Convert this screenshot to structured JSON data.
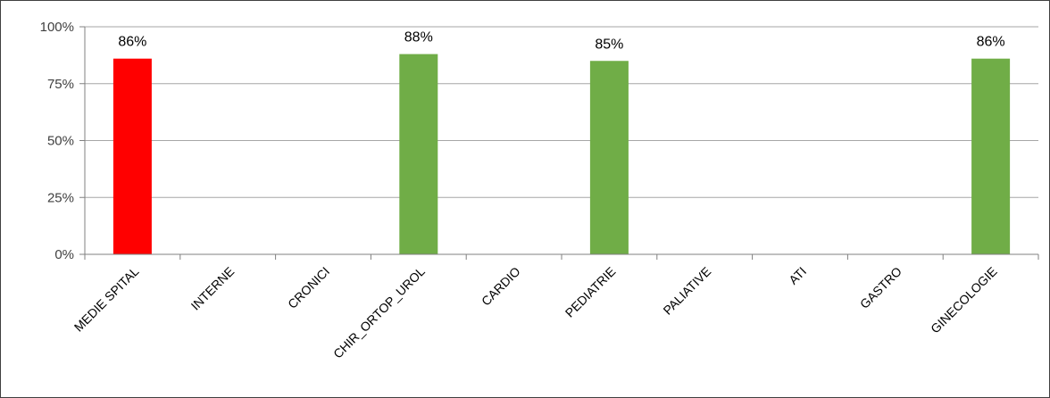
{
  "chart_data": {
    "type": "bar",
    "categories": [
      "MEDIE SPITAL",
      "INTERNE",
      "CRONICI",
      "CHIR_ORTOP_UROL",
      "CARDIO",
      "PEDIATRIE",
      "PALIATIVE",
      "ATI",
      "GASTRO",
      "GINECOLOGIE"
    ],
    "values": [
      86,
      null,
      null,
      88,
      null,
      85,
      null,
      null,
      null,
      86
    ],
    "data_labels": [
      "86%",
      "",
      "",
      "88%",
      "",
      "85%",
      "",
      "",
      "",
      "86%"
    ],
    "bar_colors": [
      "#ff0000",
      "#70ad47",
      "#70ad47",
      "#70ad47",
      "#70ad47",
      "#70ad47",
      "#70ad47",
      "#70ad47",
      "#70ad47",
      "#70ad47"
    ],
    "ylim": [
      0,
      100
    ],
    "y_ticks": [
      0,
      25,
      50,
      75,
      100
    ],
    "y_tick_labels": [
      "0%",
      "25%",
      "50%",
      "75%",
      "100%"
    ],
    "title": "",
    "xlabel": "",
    "ylabel": "",
    "grid": true,
    "legend": "none",
    "gridline_color": "#a6a6a6",
    "axis_color": "#808080"
  }
}
